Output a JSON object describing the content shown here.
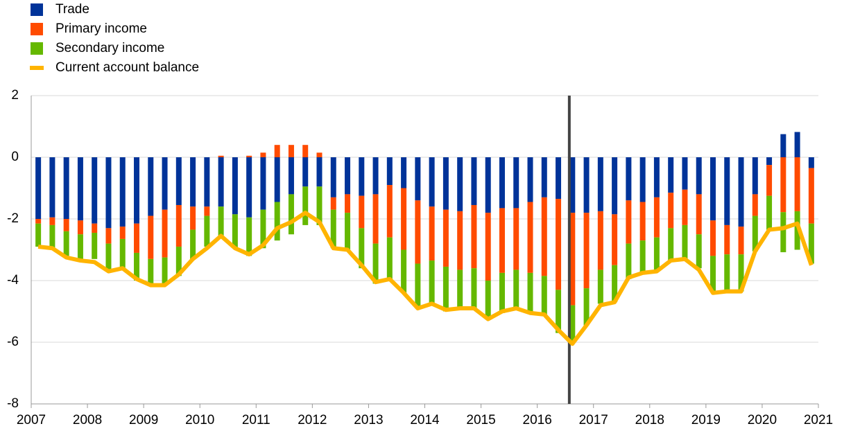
{
  "chart_data": {
    "type": "stacked-bar-line",
    "x": [
      2007.125,
      2007.375,
      2007.625,
      2007.875,
      2008.125,
      2008.375,
      2008.625,
      2008.875,
      2009.125,
      2009.375,
      2009.625,
      2009.875,
      2010.125,
      2010.375,
      2010.625,
      2010.875,
      2011.125,
      2011.375,
      2011.625,
      2011.875,
      2012.125,
      2012.375,
      2012.625,
      2012.875,
      2013.125,
      2013.375,
      2013.625,
      2013.875,
      2014.125,
      2014.375,
      2014.625,
      2014.875,
      2015.125,
      2015.375,
      2015.625,
      2015.875,
      2016.125,
      2016.375,
      2016.625,
      2016.875,
      2017.125,
      2017.375,
      2017.625,
      2017.875,
      2018.125,
      2018.375,
      2018.625,
      2018.875,
      2019.125,
      2019.375,
      2019.625,
      2019.875,
      2020.125,
      2020.375,
      2020.625,
      2020.875
    ],
    "series": [
      {
        "name": "Trade",
        "color": "#003399",
        "kind": "bar",
        "values": [
          -2.0,
          -1.95,
          -2.0,
          -2.05,
          -2.15,
          -2.3,
          -2.25,
          -2.15,
          -1.9,
          -1.7,
          -1.55,
          -1.6,
          -1.6,
          -1.6,
          -1.85,
          -1.95,
          -1.7,
          -1.45,
          -1.2,
          -0.95,
          -0.95,
          -1.3,
          -1.2,
          -1.25,
          -1.2,
          -0.9,
          -1.0,
          -1.4,
          -1.6,
          -1.7,
          -1.75,
          -1.55,
          -1.8,
          -1.65,
          -1.65,
          -1.45,
          -1.3,
          -1.35,
          -1.8,
          -1.8,
          -1.75,
          -1.85,
          -1.4,
          -1.45,
          -1.3,
          -1.15,
          -1.05,
          -1.2,
          -2.05,
          -2.2,
          -2.25,
          -1.2,
          -0.25,
          0.75,
          0.82,
          -0.35
        ]
      },
      {
        "name": "Primary income",
        "color": "#ff4b00",
        "kind": "bar",
        "values": [
          -0.15,
          -0.25,
          -0.4,
          -0.45,
          -0.3,
          -0.5,
          -0.4,
          -0.95,
          -1.4,
          -1.55,
          -1.35,
          -0.75,
          -0.3,
          0.05,
          0,
          0.05,
          0.15,
          0.4,
          0.4,
          0.4,
          0.15,
          -0.4,
          -0.6,
          -1.05,
          -1.6,
          -1.7,
          -2.0,
          -2.05,
          -1.75,
          -1.85,
          -1.9,
          -2.05,
          -2.2,
          -2.1,
          -2.0,
          -2.3,
          -2.55,
          -2.95,
          -3.0,
          -2.45,
          -1.9,
          -1.65,
          -1.4,
          -1.25,
          -1.3,
          -1.15,
          -1.15,
          -1.3,
          -1.15,
          -0.95,
          -0.9,
          -0.7,
          -1.0,
          -1.78,
          -1.75,
          -1.8
        ]
      },
      {
        "name": "Secondary income",
        "color": "#65b800",
        "kind": "bar",
        "values": [
          -0.75,
          -0.75,
          -0.8,
          -0.8,
          -0.85,
          -0.9,
          -0.95,
          -0.9,
          -0.85,
          -0.85,
          -0.95,
          -0.95,
          -1.0,
          -0.95,
          -1.1,
          -1.25,
          -1.25,
          -1.25,
          -1.3,
          -1.25,
          -1.25,
          -1.25,
          -1.2,
          -1.3,
          -1.3,
          -1.35,
          -1.4,
          -1.4,
          -1.4,
          -1.45,
          -1.3,
          -1.3,
          -1.25,
          -1.3,
          -1.3,
          -1.3,
          -1.3,
          -1.4,
          -1.2,
          -1.2,
          -1.1,
          -1.2,
          -1.15,
          -1.1,
          -1.05,
          -1.05,
          -1.1,
          -1.1,
          -1.15,
          -1.2,
          -1.2,
          -1.15,
          -1.1,
          -1.3,
          -1.25,
          -1.3
        ]
      },
      {
        "name": "Current account balance",
        "color": "#ffb400",
        "kind": "line",
        "values": [
          -2.9,
          -2.95,
          -3.25,
          -3.35,
          -3.4,
          -3.7,
          -3.6,
          -3.95,
          -4.15,
          -4.15,
          -3.8,
          -3.3,
          -2.95,
          -2.55,
          -2.95,
          -3.15,
          -2.85,
          -2.3,
          -2.1,
          -1.8,
          -2.1,
          -2.95,
          -3.0,
          -3.5,
          -4.05,
          -3.95,
          -4.4,
          -4.9,
          -4.75,
          -4.95,
          -4.9,
          -4.9,
          -5.25,
          -5.0,
          -4.9,
          -5.05,
          -5.1,
          -5.6,
          -6.05,
          -5.45,
          -4.8,
          -4.7,
          -3.9,
          -3.75,
          -3.7,
          -3.35,
          -3.3,
          -3.65,
          -4.4,
          -4.35,
          -4.35,
          -3.05,
          -2.35,
          -2.3,
          -2.15,
          -3.5
        ]
      }
    ],
    "xlim": [
      2007,
      2021
    ],
    "xticks": [
      2007,
      2008,
      2009,
      2010,
      2011,
      2012,
      2013,
      2014,
      2015,
      2016,
      2017,
      2018,
      2019,
      2020,
      2021
    ],
    "ylim": [
      -8,
      2
    ],
    "yticks": [
      -8,
      -6,
      -4,
      -2,
      0,
      2
    ],
    "grid": true,
    "reference_line_x": 2016.57,
    "reference_line_color": "#444444"
  }
}
